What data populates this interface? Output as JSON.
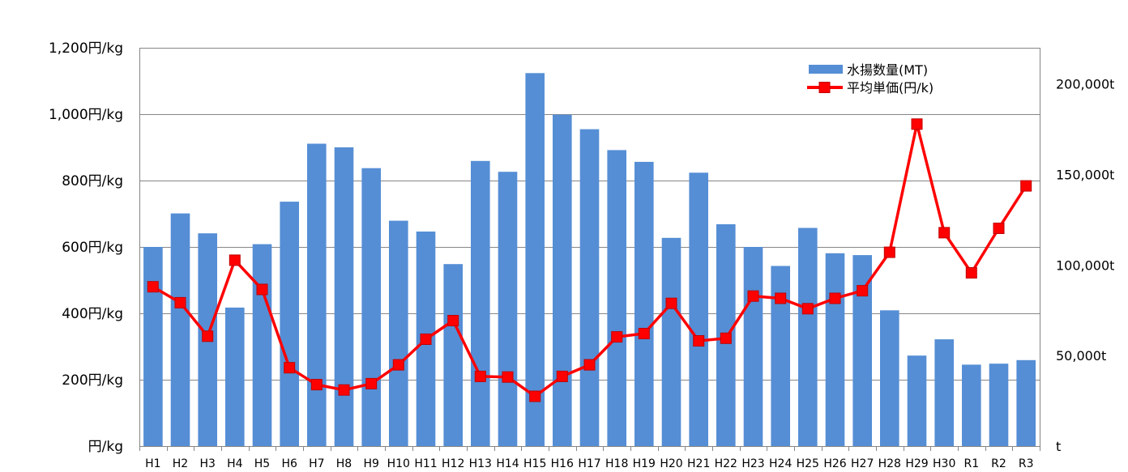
{
  "chart_data": {
    "type": "bar",
    "title": "",
    "xlabel": "",
    "categories": [
      "H1",
      "H2",
      "H3",
      "H4",
      "H5",
      "H6",
      "H7",
      "H8",
      "H9",
      "H10",
      "H11",
      "H12",
      "H13",
      "H14",
      "H15",
      "H16",
      "H17",
      "H18",
      "H19",
      "H20",
      "H21",
      "H22",
      "H23",
      "H24",
      "H25",
      "H26",
      "H27",
      "H28",
      "H29",
      "H30",
      "R1",
      "R2",
      "R3"
    ],
    "y_left": {
      "label": "",
      "range": [
        0,
        1200
      ],
      "ticks": [
        0,
        200,
        400,
        600,
        800,
        1000,
        1200
      ],
      "tick_labels": [
        "円/kg",
        "200円/kg",
        "400円/kg",
        "600円/kg",
        "800円/kg",
        "1,000円/kg",
        "1,200円/kg"
      ]
    },
    "y_right": {
      "label": "",
      "range": [
        0,
        220000
      ],
      "ticks": [
        0,
        50000,
        100000,
        150000,
        200000
      ],
      "tick_labels": [
        "t",
        "50,000t",
        "100,000t",
        "150,000t",
        "200,000t"
      ]
    },
    "grid": true,
    "legend_position": "top-right",
    "series": [
      {
        "name": "水揚数量(MT)",
        "type": "bar",
        "axis": "right",
        "color": "#558ED5",
        "values": [
          110000,
          128500,
          117500,
          76500,
          111500,
          135000,
          167000,
          165000,
          153500,
          124500,
          118500,
          100500,
          157500,
          151500,
          206000,
          183000,
          175000,
          163500,
          157000,
          115000,
          151000,
          122500,
          110000,
          99500,
          120500,
          106500,
          105500,
          75000,
          50000,
          59000,
          45000,
          45500,
          47500
        ]
      },
      {
        "name": "平均単価(円/k)",
        "type": "line",
        "axis": "left",
        "color": "#FF0000",
        "marker_color": "#FF0000",
        "values": [
          480,
          432,
          331,
          560,
          472,
          236,
          185,
          169,
          188,
          245,
          322,
          378,
          210,
          208,
          150,
          210,
          245,
          329,
          339,
          430,
          317,
          325,
          452,
          445,
          414,
          445,
          468,
          584,
          970,
          643,
          522,
          656,
          784
        ]
      }
    ]
  }
}
